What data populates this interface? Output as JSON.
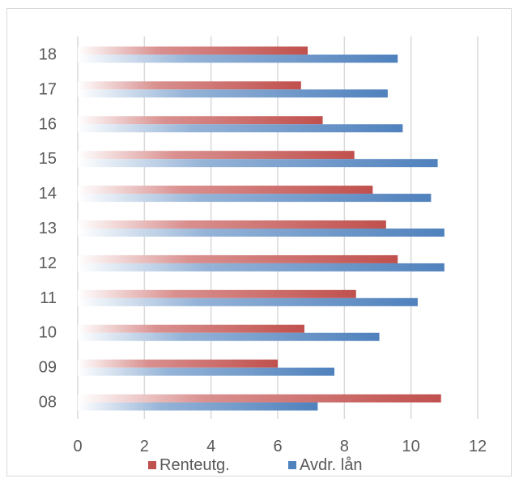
{
  "chart_data": {
    "type": "bar",
    "orientation": "horizontal",
    "categories": [
      "08",
      "09",
      "10",
      "11",
      "12",
      "13",
      "14",
      "15",
      "16",
      "17",
      "18"
    ],
    "series": [
      {
        "name": "Renteutg.",
        "values": [
          10.9,
          6.0,
          6.8,
          8.35,
          9.6,
          9.25,
          8.85,
          8.3,
          7.35,
          6.7,
          6.9
        ]
      },
      {
        "name": "Avdr. lån",
        "values": [
          7.2,
          7.7,
          9.05,
          10.2,
          11.0,
          11.0,
          10.6,
          10.8,
          9.75,
          9.3,
          9.6
        ]
      }
    ],
    "xlim": [
      0,
      12
    ],
    "xticks": [
      "0",
      "2",
      "4",
      "6",
      "8",
      "10",
      "12"
    ],
    "grid": true,
    "legend_position": "bottom",
    "colors": {
      "Renteutg.": "#c0504d",
      "Avdr. lån": "#4f81bd"
    }
  }
}
